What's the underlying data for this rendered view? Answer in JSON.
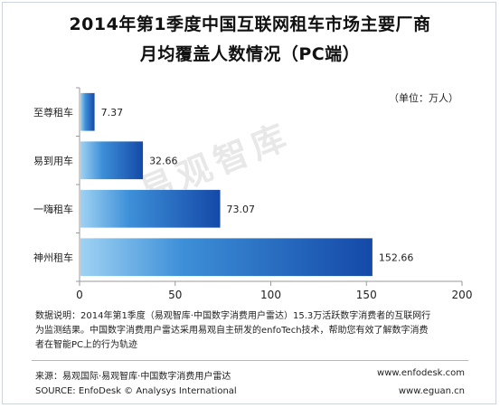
{
  "chart_data": {
    "type": "bar",
    "orientation": "horizontal",
    "title_line1": "2014年第1季度中国互联网租车市场主要厂商",
    "title_line2": "月均覆盖人数情况（PC端）",
    "unit_label": "（单位：万人）",
    "categories": [
      "至尊租车",
      "易到用车",
      "一嗨租车",
      "神州租车"
    ],
    "values": [
      7.37,
      32.66,
      73.07,
      152.66
    ],
    "value_labels": [
      "7.37",
      "32.66",
      "73.07",
      "152.66"
    ],
    "xlim": [
      0,
      200
    ],
    "xticks": [
      "0",
      "50",
      "100",
      "150",
      "200"
    ],
    "grid": false,
    "colors": {
      "bar_light": "#9fd2f3",
      "bar_mid": "#3d8fd8",
      "bar_dark": "#1449a8"
    }
  },
  "watermark": "易观智库",
  "note": {
    "line1": "数据说明：2014年第1季度（易观智库·中国数字消费用户雷达）15.3万活跃数字消费者的互联网行",
    "line2": "为监测结果。中国数字消费用户雷达采用易观自主研发的enfoTech技术，帮助您有效了解数字消费",
    "line3": "者在智能PC上的行为轨迹"
  },
  "source": {
    "cn": "来源：易观国际·易观智库·中国数字消费用户雷达",
    "en": "SOURCE: EnfoDesk © Analysys International",
    "url1": "www.enfodesk.com",
    "url2": "www.eguan.cn"
  }
}
